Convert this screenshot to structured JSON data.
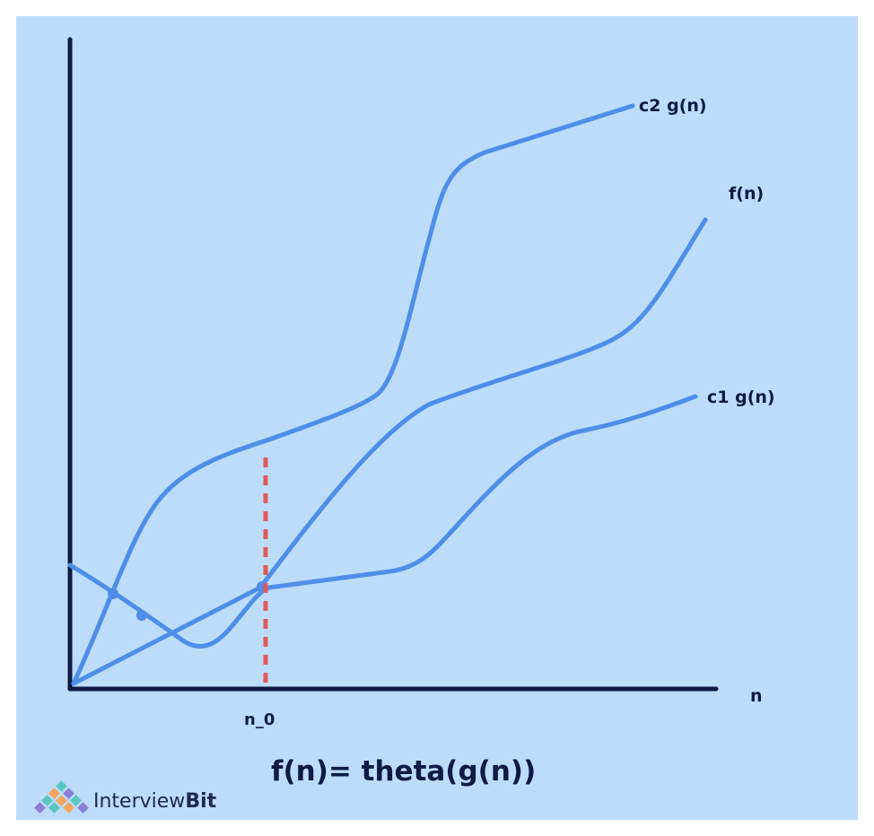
{
  "diagram": {
    "formula": "f(n)= theta(g(n))",
    "x_axis_label": "n",
    "threshold_label": "n_0",
    "curves": {
      "upper": "c2 g(n)",
      "middle": "f(n)",
      "lower": "c1 g(n)"
    }
  },
  "brand": {
    "name_regular": "Interview",
    "name_bold": "Bit"
  },
  "colors": {
    "background": "#bcdcfa",
    "axis": "#0d1b45",
    "curve": "#4f8ee8",
    "threshold_line": "#e05a5a",
    "logo_teal": "#5cc6c0",
    "logo_orange": "#f4a45c",
    "logo_purple": "#8b7fd6"
  }
}
